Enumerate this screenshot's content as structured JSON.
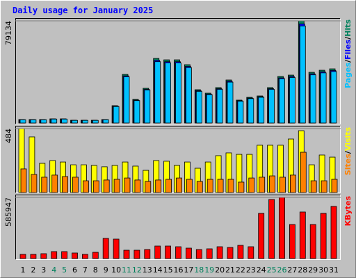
{
  "title": "Daily usage for January 2025",
  "legend_separator": "/",
  "chart_data": [
    {
      "type": "bar",
      "ylim": [
        0,
        79134
      ],
      "yticks": [
        79134
      ],
      "series": [
        {
          "name": "Hits",
          "color": "#00805c",
          "values": [
            2690,
            2690,
            2690,
            3228,
            3228,
            2152,
            2152,
            2152,
            2690,
            13450,
            37660,
            18292,
            26900,
            50034,
            48958,
            48958,
            45192,
            25824,
            23134,
            27438,
            33356,
            17754,
            19906,
            20982,
            27438,
            36046,
            37122,
            79134,
            39274,
            40888,
            41964
          ]
        },
        {
          "name": "Files",
          "color": "#0000ff",
          "values": [
            2610,
            2610,
            2610,
            3130,
            3130,
            2090,
            2090,
            2090,
            2610,
            13050,
            36530,
            17740,
            26090,
            48530,
            47490,
            47490,
            43840,
            25050,
            22440,
            26610,
            32360,
            17220,
            19310,
            20350,
            26610,
            34960,
            36010,
            76760,
            38100,
            39660,
            40710
          ]
        },
        {
          "name": "Pages",
          "color": "#00c0ff",
          "values": [
            2560,
            2560,
            2560,
            3070,
            3070,
            2040,
            2040,
            2040,
            2560,
            12780,
            35780,
            17380,
            25560,
            47530,
            46510,
            46510,
            42930,
            24530,
            21980,
            26070,
            31690,
            16870,
            18910,
            19930,
            26070,
            34240,
            35270,
            75180,
            37310,
            38840,
            39870
          ]
        }
      ]
    },
    {
      "type": "bar",
      "ylim": [
        0,
        484
      ],
      "yticks": [
        484
      ],
      "series": [
        {
          "name": "Visits",
          "color": "#ffff00",
          "values": [
            484,
            421,
            221,
            242,
            231,
            210,
            210,
            205,
            195,
            205,
            231,
            200,
            168,
            242,
            237,
            205,
            231,
            184,
            231,
            279,
            300,
            289,
            289,
            358,
            358,
            358,
            405,
            468,
            210,
            284,
            268
          ]
        },
        {
          "name": "Sites",
          "color": "#ff8000",
          "values": [
            179,
            137,
            116,
            132,
            121,
            116,
            89,
            89,
            95,
            100,
            110,
            95,
            84,
            95,
            100,
            110,
            100,
            84,
            100,
            100,
            100,
            79,
            110,
            116,
            126,
            116,
            132,
            305,
            89,
            89,
            100
          ]
        }
      ]
    },
    {
      "type": "bar",
      "ylim": [
        0,
        585947
      ],
      "yticks": [
        585947
      ],
      "categories": [
        "1",
        "2",
        "3",
        "4",
        "5",
        "6",
        "7",
        "8",
        "9",
        "10",
        "11",
        "12",
        "13",
        "14",
        "15",
        "16",
        "17",
        "18",
        "19",
        "20",
        "21",
        "22",
        "23",
        "24",
        "25",
        "26",
        "27",
        "28",
        "29",
        "30",
        "31"
      ],
      "category_color": "#000000",
      "highlight_categories": [
        "4",
        "5",
        "11",
        "12",
        "18",
        "19",
        "25",
        "26"
      ],
      "highlight_color": "#00805c",
      "series": [
        {
          "name": "KBytes",
          "color": "#ff0000",
          "values": [
            39950,
            39950,
            46610,
            66580,
            66580,
            53260,
            39950,
            59920,
            193080,
            186420,
            79900,
            79900,
            86550,
            119840,
            119840,
            113190,
            99870,
            86550,
            93210,
            113190,
            106530,
            126500,
            113190,
            432770,
            565930,
            585947,
            326240,
            446090,
            326240,
            432770,
            499350
          ]
        }
      ]
    }
  ]
}
